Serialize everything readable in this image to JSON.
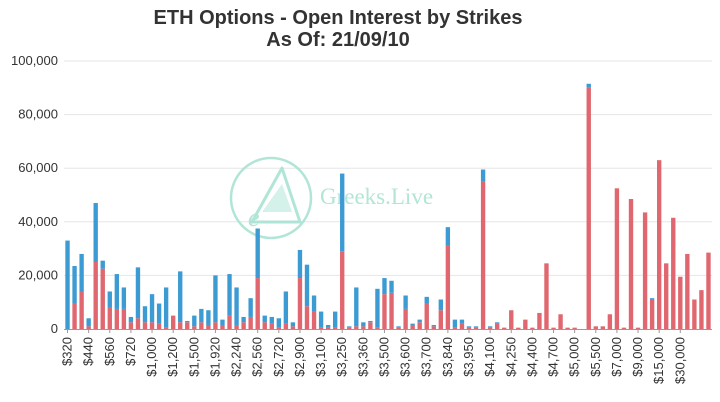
{
  "chart_data": {
    "type": "bar",
    "stacked": true,
    "title": "ETH Options - Open Interest by Strikes",
    "subtitle": "As Of: 21/09/10",
    "xlabel": "",
    "ylabel": "",
    "ylim": [
      0,
      100000
    ],
    "yticks": [
      "0",
      "20,000",
      "40,000",
      "60,000",
      "80,000",
      "100,000"
    ],
    "grid": true,
    "watermark": "Greeks.Live",
    "colors": {
      "call": "#e0666f",
      "put": "#3d9bd4",
      "watermark": "#a8e3d3"
    },
    "xtick_labels": [
      "$320",
      "$440",
      "$560",
      "$720",
      "$1,000",
      "$1,200",
      "$1,500",
      "$1,920",
      "$2,240",
      "$2,560",
      "$2,720",
      "$2,900",
      "$3,100",
      "$3,250",
      "$3,360",
      "$3,500",
      "$3,600",
      "$3,700",
      "$3,840",
      "$3,950",
      "$4,100",
      "$4,250",
      "$4,400",
      "$4,700",
      "$5,000",
      "$5,500",
      "$7,000",
      "$9,000",
      "$15,000",
      "$30,000"
    ],
    "series": [
      {
        "values": [
          0,
          9500,
          14000,
          1000,
          25000,
          22500,
          8000,
          7500,
          7500,
          2500,
          4000,
          2500,
          2500,
          2000,
          500,
          5000,
          2500,
          2500,
          1000,
          2500,
          1500,
          2500,
          1500,
          5000,
          1500,
          2500,
          4500,
          19000,
          2500,
          2000,
          500,
          2000,
          1000,
          19000,
          8500,
          6500,
          500,
          500,
          500,
          29000,
          500,
          1000,
          1000,
          2500,
          500,
          13000,
          13500,
          500,
          7500,
          1500,
          2500,
          9500,
          1000,
          7000,
          31000,
          500,
          2000,
          500,
          500,
          55000,
          500,
          2000,
          500,
          7000,
          500,
          3500,
          500,
          6000,
          24500,
          500,
          5500,
          500,
          500,
          0,
          90000,
          1000,
          1000,
          5500,
          52500,
          500,
          48500,
          500,
          43500,
          11000,
          63000,
          24500,
          41500,
          19500,
          28000,
          11000,
          14500,
          28500
        ]
      },
      {
        "values": [
          33000,
          14000,
          14000,
          3000,
          22000,
          3000,
          6000,
          13000,
          8000,
          2000,
          19000,
          6000,
          10500,
          7500,
          15000,
          0,
          19000,
          500,
          4000,
          5000,
          5500,
          17500,
          2000,
          15500,
          14000,
          2000,
          7000,
          18500,
          2500,
          2500,
          3500,
          12000,
          1500,
          10500,
          15500,
          6000,
          6000,
          1000,
          6000,
          29000,
          500,
          14500,
          1500,
          500,
          14500,
          6000,
          4500,
          500,
          5000,
          500,
          1000,
          2500,
          500,
          4000,
          7000,
          3000,
          1500,
          500,
          500,
          4500,
          500,
          500,
          0,
          0,
          0,
          0,
          0,
          0,
          0,
          0,
          0,
          0,
          0,
          0,
          1500,
          0,
          0,
          0,
          0,
          0,
          0,
          0,
          0,
          500,
          0,
          0,
          0,
          0,
          0,
          0,
          0,
          0,
          0
        ]
      }
    ]
  }
}
